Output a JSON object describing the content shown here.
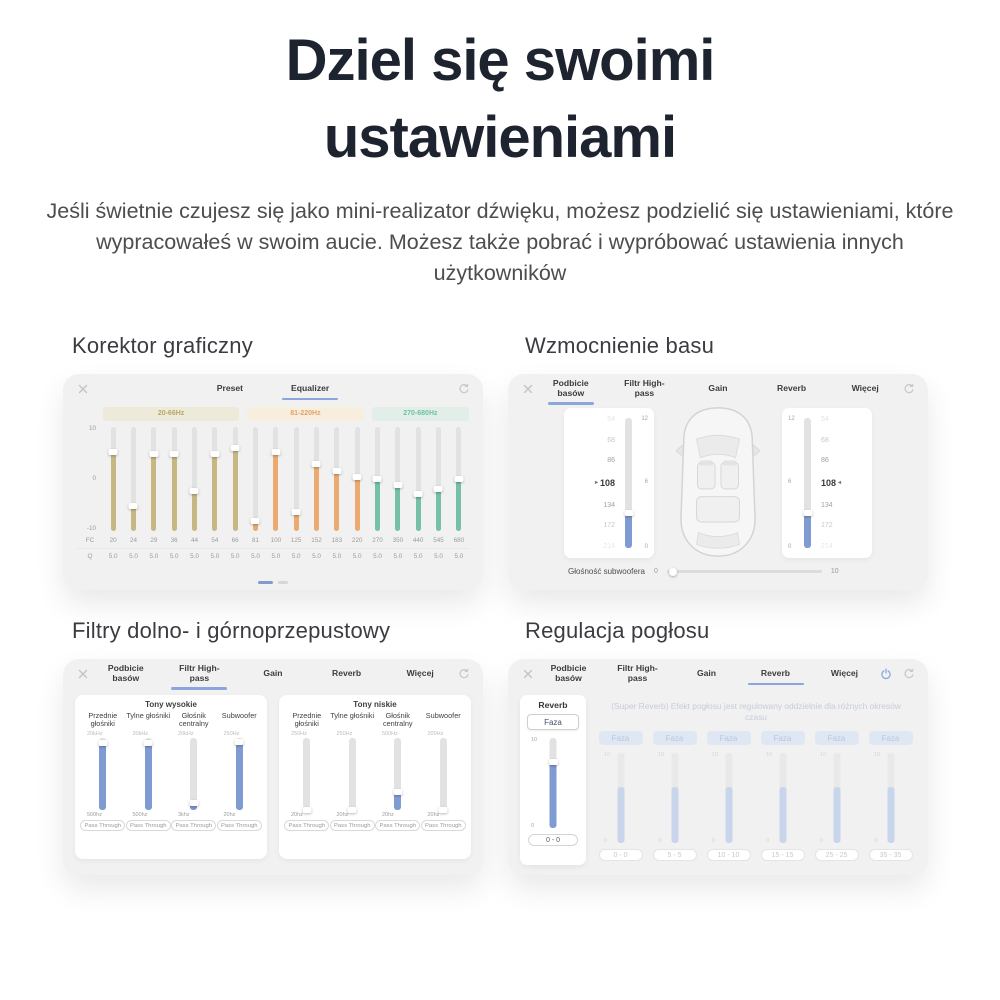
{
  "header": {
    "title_line1": "Dziel się swoimi",
    "title_line2": "ustawieniami",
    "subtitle": "Jeśli świetnie czujesz się jako mini-realizator dźwięku, możesz podzielić się ustawieniami, które wypracowałeś w swoim aucie. Możesz także pobrać i wypróbować ustawienia innych użytkowników"
  },
  "colors": {
    "accent_blue": "#7f9bd2",
    "faded_blue": "#c9d5eb",
    "khaki": "#c7b883",
    "orange": "#eaaa72",
    "teal": "#74c1a7",
    "track_gray": "#e2e2e3"
  },
  "audio_tabs": [
    "Podbicie basów",
    "Filtr High-pass",
    "Gain",
    "Reverb",
    "Więcej"
  ],
  "sections": {
    "equalizer": {
      "heading": "Korektor graficzny",
      "tabs": [
        "Preset",
        "Equalizer"
      ],
      "active_tab": "Equalizer",
      "axis_labels": [
        "10",
        "0",
        "-10"
      ],
      "fc_label": "FC",
      "q_label": "Q",
      "bands": [
        {
          "label": "20-66Hz",
          "bg": "#eeead9",
          "text": "#b8a76b",
          "fill": "#c7b883",
          "span": 7
        },
        {
          "label": "81-220Hz",
          "bg": "#f8eedd",
          "text": "#e0a369",
          "fill": "#eaaa72",
          "span": 6
        },
        {
          "label": "270-680Hz",
          "bg": "#e2efe9",
          "text": "#6fc2a5",
          "fill": "#74c1a7",
          "span": 5
        }
      ],
      "sliders": [
        {
          "fc": "20",
          "q": "5.0",
          "band": 0,
          "pct": 76,
          "value": 5.2
        },
        {
          "fc": "24",
          "q": "5.0",
          "band": 0,
          "pct": 24,
          "value": -5.2
        },
        {
          "fc": "29",
          "q": "5.0",
          "band": 0,
          "pct": 74,
          "value": 4.8
        },
        {
          "fc": "36",
          "q": "5.0",
          "band": 0,
          "pct": 74,
          "value": 4.8
        },
        {
          "fc": "44",
          "q": "5.0",
          "band": 0,
          "pct": 38,
          "value": -2.4
        },
        {
          "fc": "54",
          "q": "5.0",
          "band": 0,
          "pct": 74,
          "value": 4.8
        },
        {
          "fc": "66",
          "q": "5.0",
          "band": 0,
          "pct": 80,
          "value": 6.0
        },
        {
          "fc": "81",
          "q": "5.0",
          "band": 1,
          "pct": 10,
          "value": -8.0
        },
        {
          "fc": "100",
          "q": "5.0",
          "band": 1,
          "pct": 76,
          "value": 5.2
        },
        {
          "fc": "125",
          "q": "5.0",
          "band": 1,
          "pct": 18,
          "value": -6.4
        },
        {
          "fc": "152",
          "q": "5.0",
          "band": 1,
          "pct": 64,
          "value": 2.8
        },
        {
          "fc": "183",
          "q": "5.0",
          "band": 1,
          "pct": 58,
          "value": 1.6
        },
        {
          "fc": "220",
          "q": "5.0",
          "band": 1,
          "pct": 52,
          "value": 0.4
        },
        {
          "fc": "270",
          "q": "5.0",
          "band": 2,
          "pct": 50,
          "value": 0.0
        },
        {
          "fc": "350",
          "q": "5.0",
          "band": 2,
          "pct": 44,
          "value": -1.2
        },
        {
          "fc": "440",
          "q": "5.0",
          "band": 2,
          "pct": 36,
          "value": -2.8
        },
        {
          "fc": "545",
          "q": "5.0",
          "band": 2,
          "pct": 40,
          "value": -2.0
        },
        {
          "fc": "680",
          "q": "5.0",
          "band": 2,
          "pct": 50,
          "value": 0.0
        }
      ],
      "pagination": {
        "dots": 2,
        "active": 0
      }
    },
    "bass": {
      "heading": "Wzmocnienie basu",
      "active_tab": "Podbicie basów",
      "freq_wheel": [
        "54",
        "68",
        "86",
        "108",
        "134",
        "172",
        "214"
      ],
      "wheel_opacity": [
        0.25,
        0.5,
        0.85,
        1,
        0.85,
        0.5,
        0.22
      ],
      "selected_freq": "108",
      "scale_labels": [
        "12",
        "6",
        "0"
      ],
      "level_pct": 27,
      "subwoofer": {
        "label": "Głośność subwoofera",
        "min": "0",
        "max": "10",
        "value_pct": 4
      }
    },
    "filters": {
      "heading": "Filtry dolno- i górnoprzepustowy",
      "active_tab": "Filtr High-pass",
      "cards": [
        {
          "title": "Tony wysokie",
          "columns": [
            {
              "name": "Przednie głośniki",
              "top": "20kHz",
              "bottom": "500hz",
              "pct": 93,
              "button": "Pass Through"
            },
            {
              "name": "Tylne głośniki",
              "top": "20kHz",
              "bottom": "500hz",
              "pct": 93,
              "button": "Pass Through"
            },
            {
              "name": "Głośnik centralny",
              "top": "20kHz",
              "bottom": "3khz",
              "pct": 10,
              "button": "Pass Through"
            },
            {
              "name": "Subwoofer",
              "top": "250Hz",
              "bottom": "20hz",
              "pct": 95,
              "button": "Pass Through"
            }
          ]
        },
        {
          "title": "Tony niskie",
          "columns": [
            {
              "name": "Przednie głośniki",
              "top": "250Hz",
              "bottom": "20hz",
              "pct": 0,
              "button": "Pass Through"
            },
            {
              "name": "Tylne głośniki",
              "top": "250Hz",
              "bottom": "20hz",
              "pct": 0,
              "button": "Pass Through"
            },
            {
              "name": "Głośnik centralny",
              "top": "500Hz",
              "bottom": "20hz",
              "pct": 25,
              "button": "Pass Through"
            },
            {
              "name": "Subwoofer",
              "top": "200Hz",
              "bottom": "20hz",
              "pct": 0,
              "button": "Pass Through"
            }
          ]
        }
      ]
    },
    "reverb": {
      "heading": "Regulacja pogłosu",
      "active_tab": "Reverb",
      "left": {
        "title": "Reverb",
        "phase_button": "Faza",
        "scale_top": "10",
        "scale_bottom": "0",
        "pct": 73,
        "range": "0 - 0"
      },
      "caption": "(Super Reverb) Efekt pogłosu jest regulowany oddzielnie dla różnych okresów czasu",
      "scale_top": "10",
      "scale_bottom": "0",
      "columns": [
        {
          "phase_button": "Faza",
          "range": "0 - 0",
          "pct": 62
        },
        {
          "phase_button": "Faza",
          "range": "5 - 5",
          "pct": 62
        },
        {
          "phase_button": "Faza",
          "range": "10 - 10",
          "pct": 62
        },
        {
          "phase_button": "Faza",
          "range": "15 - 15",
          "pct": 62
        },
        {
          "phase_button": "Faza",
          "range": "25 - 25",
          "pct": 62
        },
        {
          "phase_button": "Faza",
          "range": "35 - 35",
          "pct": 62
        }
      ]
    }
  }
}
